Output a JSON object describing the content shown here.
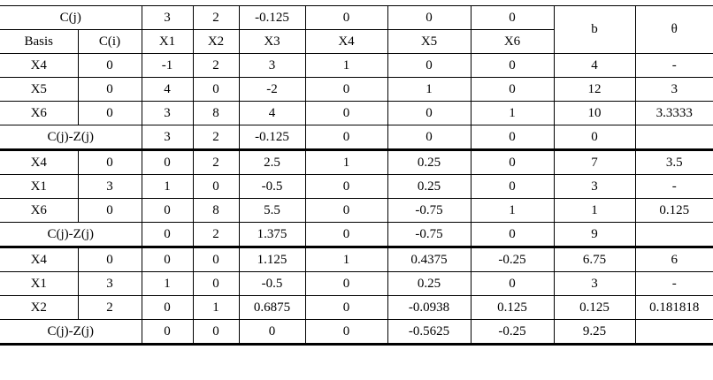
{
  "header": {
    "cj_label": "C(j)",
    "cj": [
      "3",
      "2",
      "-0.125",
      "0",
      "0",
      "0"
    ],
    "b_label": "b",
    "theta_label": "θ",
    "columns": [
      "Basis",
      "C(i)",
      "X1",
      "X2",
      "X3",
      "X4",
      "X5",
      "X6"
    ]
  },
  "tableaus": [
    {
      "rows": [
        [
          "X4",
          "0",
          "-1",
          "2",
          "3",
          "1",
          "0",
          "0",
          "4",
          "-"
        ],
        [
          "X5",
          "0",
          "4",
          "0",
          "-2",
          "0",
          "1",
          "0",
          "12",
          "3"
        ],
        [
          "X6",
          "0",
          "3",
          "8",
          "4",
          "0",
          "0",
          "1",
          "10",
          "3.3333"
        ]
      ],
      "summary": {
        "label": "C(j)-Z(j)",
        "values": [
          "3",
          "2",
          "-0.125",
          "0",
          "0",
          "0",
          "0"
        ]
      }
    },
    {
      "rows": [
        [
          "X4",
          "0",
          "0",
          "2",
          "2.5",
          "1",
          "0.25",
          "0",
          "7",
          "3.5"
        ],
        [
          "X1",
          "3",
          "1",
          "0",
          "-0.5",
          "0",
          "0.25",
          "0",
          "3",
          "-"
        ],
        [
          "X6",
          "0",
          "0",
          "8",
          "5.5",
          "0",
          "-0.75",
          "1",
          "1",
          "0.125"
        ]
      ],
      "summary": {
        "label": "C(j)-Z(j)",
        "values": [
          "0",
          "2",
          "1.375",
          "0",
          "-0.75",
          "0",
          "9"
        ]
      }
    },
    {
      "rows": [
        [
          "X4",
          "0",
          "0",
          "0",
          "1.125",
          "1",
          "0.4375",
          "-0.25",
          "6.75",
          "6"
        ],
        [
          "X1",
          "3",
          "1",
          "0",
          "-0.5",
          "0",
          "0.25",
          "0",
          "3",
          "-"
        ],
        [
          "X2",
          "2",
          "0",
          "1",
          "0.6875",
          "0",
          "-0.0938",
          "0.125",
          "0.125",
          "0.181818"
        ]
      ],
      "summary": {
        "label": "C(j)-Z(j)",
        "values": [
          "0",
          "0",
          "0",
          "0",
          "-0.5625",
          "-0.25",
          "9.25"
        ]
      }
    }
  ]
}
